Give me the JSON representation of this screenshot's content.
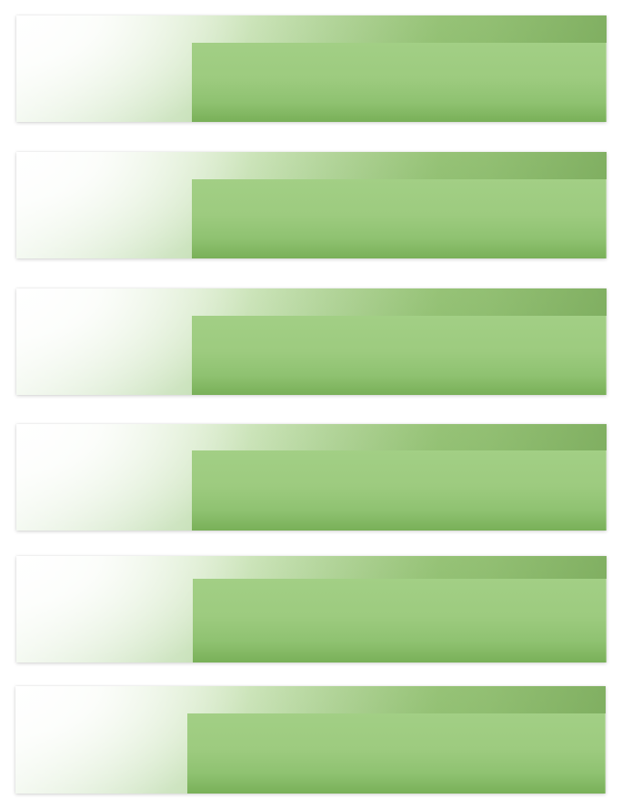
{
  "panels": [
    {
      "id": 1
    },
    {
      "id": 2
    },
    {
      "id": 3
    },
    {
      "id": 4
    },
    {
      "id": 5
    },
    {
      "id": 6
    }
  ],
  "colors": {
    "green_light": "#a6d086",
    "green_mid": "#9cca7d",
    "green_dark": "#79b058",
    "band_dark": "#649646"
  }
}
